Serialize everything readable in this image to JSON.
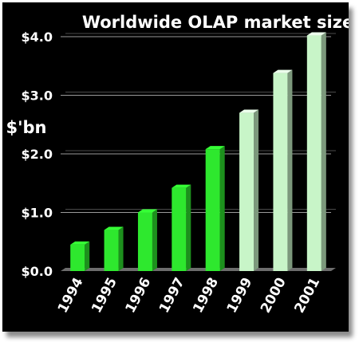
{
  "chart_data": {
    "type": "bar",
    "title": "Worldwide OLAP market size",
    "ylabel": "$'bn",
    "xlabel": "",
    "categories": [
      "1994",
      "1995",
      "1996",
      "1997",
      "1998",
      "1999",
      "2000",
      "2001"
    ],
    "values": [
      0.45,
      0.7,
      1.0,
      1.42,
      2.08,
      2.7,
      3.38,
      4.02
    ],
    "ylim": [
      0,
      4
    ],
    "yticks": [
      0,
      1,
      2,
      3,
      4
    ],
    "ytick_labels": [
      "$0.0",
      "$1.0",
      "$2.0",
      "$3.0",
      "$4.0"
    ],
    "grid": true,
    "colors": {
      "actual": "#2ee82e",
      "forecast": "#c8f5c8",
      "background": "#000000",
      "text": "#ffffff"
    },
    "forecast_from_index": 5
  }
}
